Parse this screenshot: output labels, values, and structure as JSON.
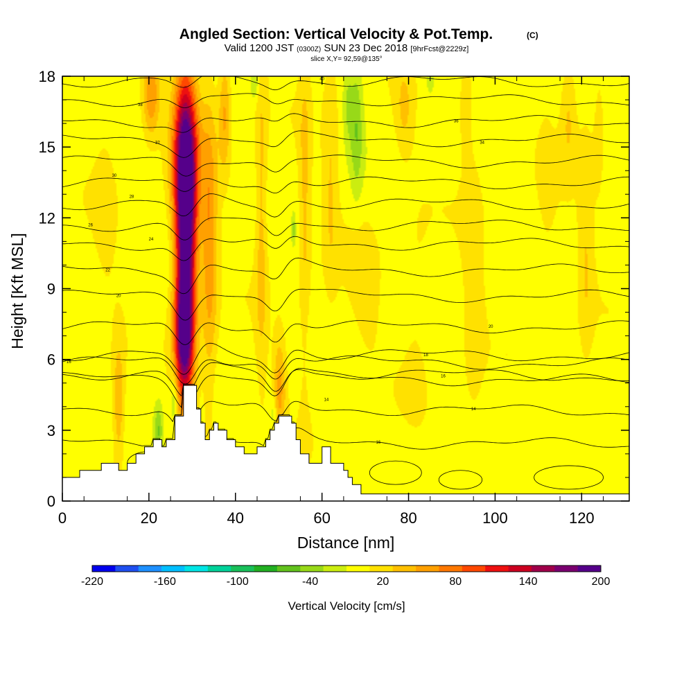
{
  "title": {
    "main": "Angled Section: Vertical Velocity & Pot.Temp.",
    "main_suffix": "(C)",
    "valid_line": "Valid 1200 JST",
    "valid_z": "(0300Z)",
    "valid_date": "SUN 23 Dec 2018",
    "forecast": "[9hrFcst@2229z]",
    "slice": "slice X,Y= 92,59@135°"
  },
  "chart_data": {
    "type": "heatmap",
    "xlabel": "Distance [nm]",
    "ylabel": "Height [Kft MSL]",
    "xlim": [
      0,
      131
    ],
    "ylim": [
      0,
      18
    ],
    "xticks": [
      "0",
      "20",
      "40",
      "60",
      "80",
      "100",
      "120"
    ],
    "yticks": [
      "0",
      "3",
      "6",
      "9",
      "12",
      "15",
      "18"
    ],
    "x_tick_values": [
      0,
      20,
      40,
      60,
      80,
      100,
      120
    ],
    "y_tick_values": [
      0,
      3,
      6,
      9,
      12,
      15,
      18
    ],
    "colorbar": {
      "title": "Vertical Velocity [cm/s]",
      "labels": [
        "-220",
        "-160",
        "-100",
        "-40",
        "20",
        "80",
        "140",
        "200"
      ],
      "label_values": [
        -220,
        -160,
        -100,
        -40,
        20,
        80,
        140,
        200
      ],
      "bins": [
        -220,
        -200,
        -180,
        -160,
        -140,
        -120,
        -100,
        -80,
        -60,
        -40,
        -20,
        0,
        20,
        40,
        60,
        80,
        100,
        120,
        140,
        160,
        180,
        200
      ],
      "colors": [
        "#0000ee",
        "#1f4ff0",
        "#1e90ff",
        "#00bfff",
        "#00e5e5",
        "#00d29a",
        "#19c05a",
        "#22b022",
        "#62c21d",
        "#98d918",
        "#cbed10",
        "#ffff00",
        "#ffe100",
        "#ffc000",
        "#ffa000",
        "#ff7800",
        "#ff4800",
        "#ee1010",
        "#cc0020",
        "#a0004a",
        "#7a0070",
        "#55008a"
      ]
    },
    "terrain": {
      "x": [
        0,
        4,
        4,
        9,
        9,
        13,
        13,
        15,
        15,
        17,
        17,
        19,
        19,
        21,
        21,
        23,
        23,
        24,
        24,
        26,
        26,
        28,
        28,
        31,
        31,
        32,
        32,
        33,
        33,
        34,
        34,
        35,
        35,
        36,
        36,
        38,
        38,
        40,
        40,
        42,
        42,
        45,
        45,
        47,
        47,
        48,
        48,
        49,
        49,
        50,
        50,
        53,
        53,
        54,
        54,
        55,
        55,
        57,
        57,
        60,
        60,
        62,
        62,
        65,
        65,
        66,
        66,
        67,
        67,
        69,
        69,
        70,
        70,
        131
      ],
      "y": [
        1.0,
        1.0,
        1.3,
        1.3,
        1.6,
        1.6,
        1.3,
        1.3,
        1.6,
        1.6,
        2.0,
        2.0,
        2.3,
        2.3,
        2.6,
        2.6,
        2.3,
        2.3,
        2.6,
        2.6,
        3.6,
        3.6,
        4.9,
        4.9,
        3.9,
        3.9,
        3.3,
        3.3,
        2.6,
        2.6,
        3.0,
        3.0,
        3.3,
        3.3,
        3.0,
        3.0,
        2.6,
        2.6,
        2.3,
        2.3,
        2.0,
        2.0,
        2.3,
        2.3,
        2.6,
        2.6,
        3.0,
        3.0,
        3.3,
        3.3,
        3.6,
        3.6,
        3.3,
        3.3,
        2.6,
        2.6,
        2.0,
        2.0,
        1.6,
        1.6,
        2.3,
        2.3,
        1.6,
        1.6,
        1.3,
        1.3,
        1.0,
        1.0,
        0.7,
        0.7,
        0.3,
        0.3,
        0.3,
        0.3
      ]
    },
    "velocity_features": [
      {
        "x": 28.5,
        "y": 10.5,
        "sx": 1.6,
        "sy": 4.2,
        "v": 200
      },
      {
        "x": 28.5,
        "y": 14.5,
        "sx": 2.2,
        "sy": 2.6,
        "v": 130
      },
      {
        "x": 28.0,
        "y": 7.0,
        "sx": 1.5,
        "sy": 1.6,
        "v": 120
      },
      {
        "x": 20.5,
        "y": 17.2,
        "sx": 1.4,
        "sy": 1.2,
        "v": 70
      },
      {
        "x": 34.0,
        "y": 11.0,
        "sx": 1.3,
        "sy": 4.5,
        "v": 65
      },
      {
        "x": 37.5,
        "y": 16.5,
        "sx": 1.0,
        "sy": 1.8,
        "v": 55
      },
      {
        "x": 50.2,
        "y": 4.8,
        "sx": 1.0,
        "sy": 1.5,
        "v": 55
      },
      {
        "x": 46.0,
        "y": 12.0,
        "sx": 1.0,
        "sy": 5.0,
        "v": 40
      },
      {
        "x": 56.0,
        "y": 12.5,
        "sx": 1.0,
        "sy": 5.0,
        "v": 35
      },
      {
        "x": 13.0,
        "y": 4.0,
        "sx": 1.0,
        "sy": 2.0,
        "v": 50
      },
      {
        "x": 62.0,
        "y": 14.0,
        "sx": 1.3,
        "sy": 4.0,
        "v": 30
      },
      {
        "x": 79.0,
        "y": 16.5,
        "sx": 1.5,
        "sy": 1.5,
        "v": 30
      },
      {
        "x": 82.0,
        "y": 8.5,
        "sx": 2.5,
        "sy": 3.0,
        "v": 15
      },
      {
        "x": 95.0,
        "y": 9.0,
        "sx": 1.8,
        "sy": 5.0,
        "v": 22
      },
      {
        "x": 93.0,
        "y": 16.5,
        "sx": 1.5,
        "sy": 1.5,
        "v": 22
      },
      {
        "x": 117.0,
        "y": 16.5,
        "sx": 1.4,
        "sy": 1.8,
        "v": 35
      },
      {
        "x": 121.0,
        "y": 11.0,
        "sx": 1.2,
        "sy": 4.0,
        "v": 28
      },
      {
        "x": 112.0,
        "y": 13.0,
        "sx": 1.5,
        "sy": 3.0,
        "v": 14
      },
      {
        "x": 124.0,
        "y": 15.5,
        "sx": 1.0,
        "sy": 2.5,
        "v": 20
      },
      {
        "x": 70.0,
        "y": 9.0,
        "sx": 3.0,
        "sy": 3.0,
        "v": 14
      },
      {
        "x": 10.0,
        "y": 13.0,
        "sx": 2.0,
        "sy": 4.0,
        "v": 14
      },
      {
        "x": 68.0,
        "y": 15.8,
        "sx": 1.0,
        "sy": 2.0,
        "v": -45
      },
      {
        "x": 66.0,
        "y": 16.8,
        "sx": 0.8,
        "sy": 1.2,
        "v": -30
      },
      {
        "x": 22.2,
        "y": 3.0,
        "sx": 0.7,
        "sy": 0.8,
        "v": -50
      },
      {
        "x": 25.8,
        "y": 4.3,
        "sx": 0.6,
        "sy": 0.8,
        "v": -40
      },
      {
        "x": 44.5,
        "y": 17.7,
        "sx": 0.6,
        "sy": 0.5,
        "v": -35
      },
      {
        "x": 48.8,
        "y": 3.7,
        "sx": 0.5,
        "sy": 0.5,
        "v": -30
      },
      {
        "x": 85.0,
        "y": 17.8,
        "sx": 0.6,
        "sy": 0.4,
        "v": -25
      },
      {
        "x": 53.5,
        "y": 11.5,
        "sx": 0.3,
        "sy": 0.4,
        "v": -40
      }
    ],
    "isentropes": [
      {
        "label": "16",
        "base": 5.9,
        "lx": 1.5,
        "ly": 5.9
      },
      {
        "label": "14",
        "base": 5.2,
        "lx": 61,
        "ly": 4.3
      },
      {
        "label": "16",
        "base": 2.5,
        "lx": 73,
        "ly": 2.5
      },
      {
        "label": "14",
        "base": 3.9,
        "lx": 95,
        "ly": 3.9
      },
      {
        "label": "16",
        "base": 5.4,
        "lx": 88,
        "ly": 5.3
      },
      {
        "label": "18",
        "base": 6.2,
        "lx": 84,
        "ly": 6.2
      },
      {
        "label": "20",
        "base": 7.4,
        "lx": 99,
        "ly": 7.4
      },
      {
        "label": "20",
        "base": 8.7,
        "lx": 13,
        "ly": 8.7
      },
      {
        "label": "22",
        "base": 9.8,
        "lx": 10.5,
        "ly": 9.8
      },
      {
        "label": "24",
        "base": 10.9,
        "lx": 20.5,
        "ly": 11.1
      },
      {
        "label": "26",
        "base": 11.7,
        "lx": 6.5,
        "ly": 11.7
      },
      {
        "label": "28",
        "base": 12.6,
        "lx": 16,
        "ly": 12.9
      },
      {
        "label": "30",
        "base": 13.5,
        "lx": 12,
        "ly": 13.8
      },
      {
        "label": "32",
        "base": 14.4,
        "lx": 22,
        "ly": 15.2
      },
      {
        "label": "34",
        "base": 15.3,
        "lx": 97,
        "ly": 15.2
      },
      {
        "label": "36",
        "base": 16.1,
        "lx": 91,
        "ly": 16.1
      },
      {
        "label": "38",
        "base": 17.0,
        "lx": 18,
        "ly": 16.8
      },
      {
        "label": "40",
        "base": 17.8,
        "lx": 60,
        "ly": 17.9
      }
    ]
  }
}
